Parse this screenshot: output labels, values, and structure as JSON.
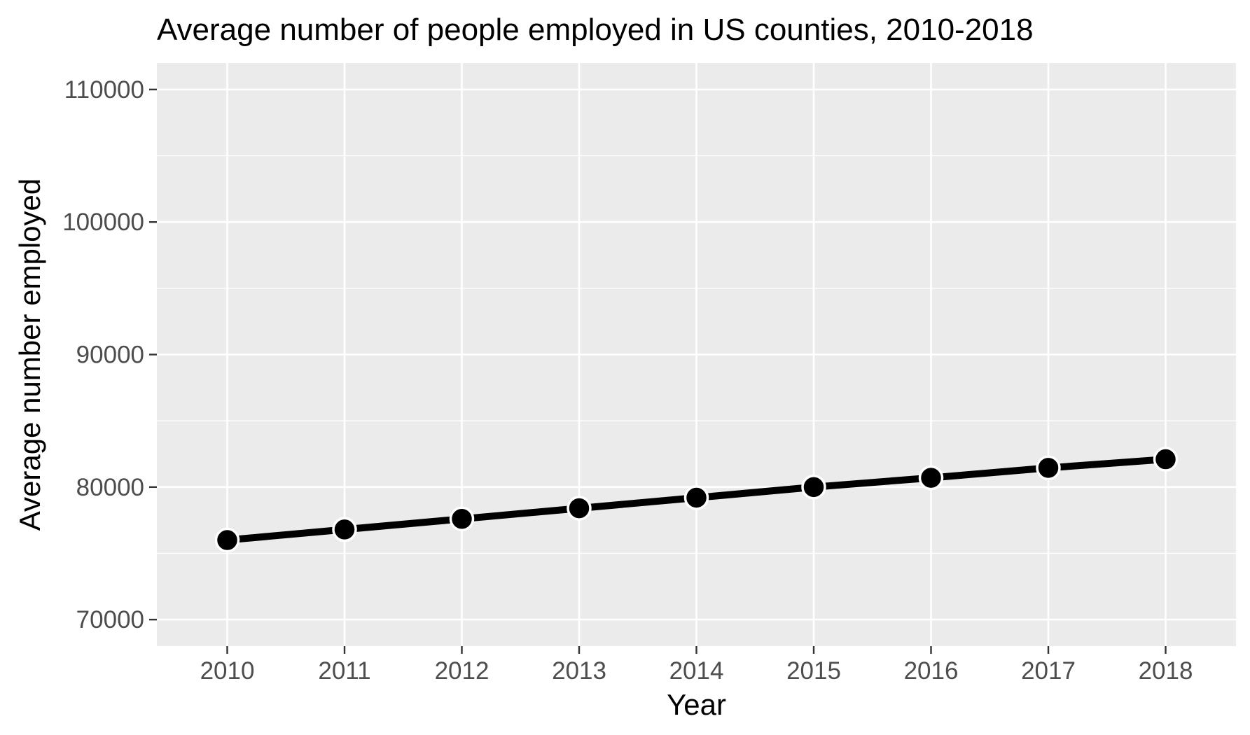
{
  "chart_data": {
    "type": "line",
    "title": "Average number of people employed in US counties, 2010-2018",
    "xlabel": "Year",
    "ylabel": "Average number employed",
    "x": [
      "2010",
      "2011",
      "2012",
      "2013",
      "2014",
      "2015",
      "2016",
      "2017",
      "2018"
    ],
    "y": [
      76000,
      76800,
      77600,
      78400,
      79200,
      80000,
      80700,
      81450,
      82100
    ],
    "ylim": [
      68000,
      112000
    ],
    "yticks": [
      70000,
      80000,
      90000,
      100000,
      110000
    ],
    "ytick_labels": [
      "70000",
      "80000",
      "90000",
      "100000",
      "110000"
    ],
    "grid": true,
    "legend": "none",
    "colors": {
      "panel_background": "#ebebeb",
      "grid": "#ffffff",
      "line": "#000000",
      "point_fill": "#000000",
      "point_stroke": "#ffffff",
      "tick_text": "#4d4d4d",
      "axis_text": "#000000"
    }
  }
}
